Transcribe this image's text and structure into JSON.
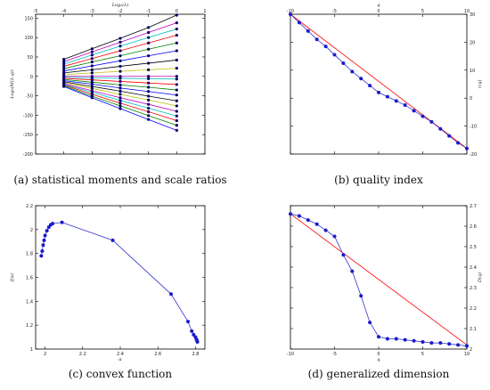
{
  "chart_data": [
    {
      "type": "line",
      "caption": "(a) statistical moments and scale ratios",
      "xlabel": "Log₂(λ)",
      "ylabel": "Log₂(M(λ,q))",
      "xlim": [
        -5,
        1
      ],
      "ylim": [
        -200,
        160
      ],
      "xticks": [
        -5,
        -4,
        -3,
        -2,
        -1,
        0,
        1
      ],
      "yticks": [
        -200,
        -150,
        -100,
        -50,
        0,
        50,
        100,
        150
      ],
      "x": [
        -4,
        -3,
        -2,
        -1,
        0
      ],
      "series": [
        {
          "color": "#0000ff",
          "values": [
            -26,
            -55,
            -83,
            -111,
            -139
          ]
        },
        {
          "color": "#008000",
          "values": [
            -24,
            -51,
            -76,
            -101,
            -126
          ]
        },
        {
          "color": "#ff0000",
          "values": [
            -22,
            -46,
            -69,
            -91,
            -114
          ]
        },
        {
          "color": "#00bfbf",
          "values": [
            -21,
            -41,
            -62,
            -82,
            -102
          ]
        },
        {
          "color": "#bf00bf",
          "values": [
            -19,
            -37,
            -55,
            -72,
            -90
          ]
        },
        {
          "color": "#bfbf00",
          "values": [
            -16,
            -31,
            -46,
            -61,
            -76
          ]
        },
        {
          "color": "#000000",
          "values": [
            -14,
            -26,
            -38,
            -51,
            -63
          ]
        },
        {
          "color": "#0000ff",
          "values": [
            -11,
            -20,
            -30,
            -39,
            -48
          ]
        },
        {
          "color": "#008000",
          "values": [
            -8,
            -15,
            -22,
            -28,
            -35
          ]
        },
        {
          "color": "#ff0000",
          "values": [
            -5,
            -9,
            -13,
            -17,
            -21
          ]
        },
        {
          "color": "#00bfbf",
          "values": [
            -2,
            -4,
            -5,
            -6,
            -7
          ]
        },
        {
          "color": "#bf00bf",
          "values": [
            0,
            0,
            0,
            0,
            0
          ]
        },
        {
          "color": "#bfbf00",
          "values": [
            4,
            9,
            13,
            17,
            21
          ]
        },
        {
          "color": "#000000",
          "values": [
            9,
            17,
            26,
            34,
            42
          ]
        },
        {
          "color": "#0000ff",
          "values": [
            14,
            27,
            40,
            53,
            66
          ]
        },
        {
          "color": "#008000",
          "values": [
            20,
            37,
            53,
            70,
            86
          ]
        },
        {
          "color": "#ff0000",
          "values": [
            26,
            46,
            66,
            86,
            106
          ]
        },
        {
          "color": "#00bfbf",
          "values": [
            32,
            55,
            78,
            100,
            122
          ]
        },
        {
          "color": "#bf00bf",
          "values": [
            38,
            63,
            88,
            113,
            138
          ]
        },
        {
          "color": "#000000",
          "values": [
            44,
            71,
            98,
            126,
            158
          ]
        }
      ]
    },
    {
      "type": "line",
      "caption": "(b) quality index",
      "xlabel": "q",
      "ylabel": "τ(q)",
      "xlim": [
        -10,
        10
      ],
      "ylim": [
        -20,
        30
      ],
      "xticks": [
        -10,
        -5,
        0,
        5,
        10
      ],
      "yticks": [
        -20,
        -10,
        0,
        10,
        20,
        30
      ],
      "y_axis_side": "right",
      "x_axis_side": "top",
      "series": [
        {
          "color": "#ff0000",
          "marker": "none",
          "x": [
            -10,
            10
          ],
          "values": [
            30,
            -18
          ]
        },
        {
          "color": "#3333cc",
          "marker": "circle",
          "x": [
            -10,
            -9,
            -8,
            -7,
            -6,
            -5,
            -4,
            -3,
            -2,
            -1,
            0,
            1,
            2,
            3,
            4,
            5,
            6,
            7,
            8,
            9,
            10
          ],
          "values": [
            30,
            27,
            24,
            21,
            18.5,
            15.5,
            12.5,
            9.5,
            7,
            4.5,
            2,
            0.5,
            -1,
            -2.5,
            -4.5,
            -6.5,
            -8.5,
            -11,
            -13.5,
            -16,
            -18
          ]
        }
      ]
    },
    {
      "type": "line",
      "caption": "(c) convex function",
      "xlabel": "α",
      "ylabel": "f(α)",
      "xlim": [
        1.95,
        2.85
      ],
      "ylim": [
        1.0,
        2.2
      ],
      "xticks": [
        2.0,
        2.2,
        2.4,
        2.6,
        2.8
      ],
      "yticks": [
        1.0,
        1.2,
        1.4,
        1.6,
        1.8,
        2.0,
        2.2
      ],
      "series": [
        {
          "color": "#3333cc",
          "marker": "circle",
          "x": [
            1.98,
            1.985,
            1.99,
            1.995,
            2.0,
            2.01,
            2.02,
            2.03,
            2.04,
            2.09,
            2.36,
            2.67,
            2.76,
            2.78,
            2.79,
            2.8,
            2.805,
            2.808,
            2.81
          ],
          "values": [
            1.78,
            1.82,
            1.87,
            1.91,
            1.95,
            1.99,
            2.02,
            2.04,
            2.05,
            2.06,
            1.91,
            1.46,
            1.23,
            1.15,
            1.12,
            1.1,
            1.08,
            1.07,
            1.06
          ]
        }
      ]
    },
    {
      "type": "line",
      "caption": "(d) generalized dimension",
      "xlabel": "q",
      "ylabel": "D(q)",
      "xlim": [
        -10,
        10
      ],
      "ylim": [
        2.0,
        2.7
      ],
      "xticks": [
        -10,
        -5,
        0,
        5,
        10
      ],
      "yticks": [
        2.0,
        2.1,
        2.2,
        2.3,
        2.4,
        2.5,
        2.6,
        2.7
      ],
      "y_axis_side": "right",
      "series": [
        {
          "color": "#ff0000",
          "marker": "none",
          "x": [
            -10,
            10
          ],
          "values": [
            2.66,
            2.02
          ]
        },
        {
          "color": "#3333cc",
          "marker": "circle",
          "x": [
            -10,
            -9,
            -8,
            -7,
            -6,
            -5,
            -4,
            -3,
            -2,
            -1,
            0,
            1,
            2,
            3,
            4,
            5,
            6,
            7,
            8,
            9,
            10
          ],
          "values": [
            2.66,
            2.65,
            2.63,
            2.61,
            2.58,
            2.55,
            2.46,
            2.38,
            2.26,
            2.13,
            2.06,
            2.05,
            2.05,
            2.045,
            2.04,
            2.035,
            2.03,
            2.03,
            2.025,
            2.02,
            2.015
          ]
        }
      ]
    }
  ]
}
